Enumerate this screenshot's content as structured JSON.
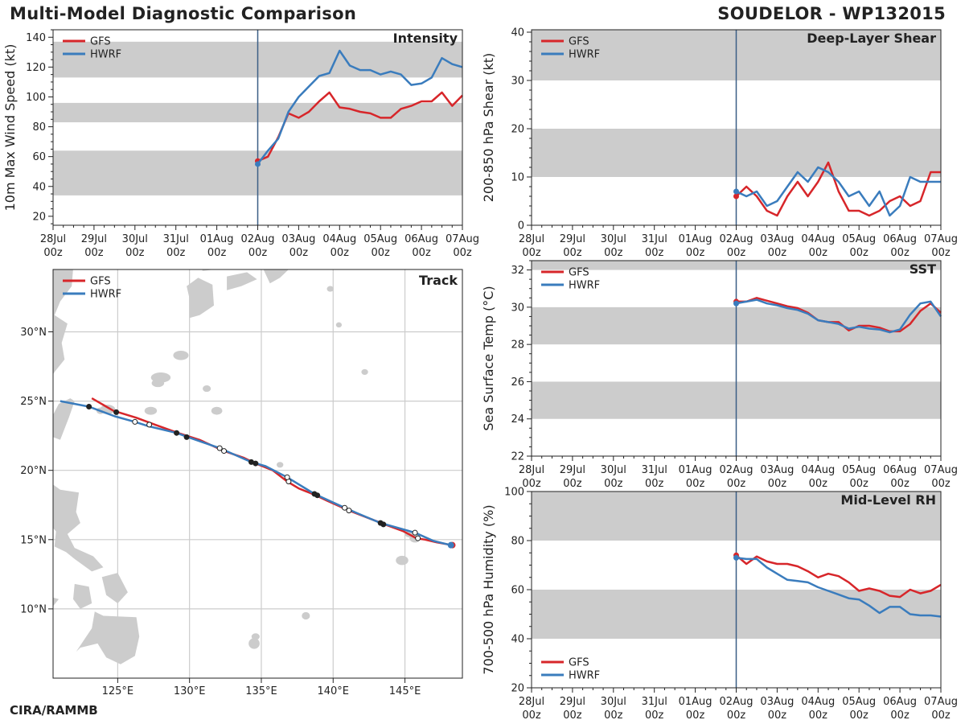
{
  "header": {
    "title": "Multi-Model Diagnostic Comparison",
    "storm": "SOUDELOR - WP132015"
  },
  "footer": {
    "credit": "CIRA/RAMMB"
  },
  "colors": {
    "gfs": "#d7262a",
    "hwrf": "#3a7cbd",
    "band": "#cccccc",
    "land": "#cccccc",
    "grid": "#cccccc",
    "init_line": "#3b5f86"
  },
  "time_axis": {
    "labels": [
      [
        "28Jul",
        "00z"
      ],
      [
        "29Jul",
        "00z"
      ],
      [
        "30Jul",
        "00z"
      ],
      [
        "31Jul",
        "00z"
      ],
      [
        "01Aug",
        "00z"
      ],
      [
        "02Aug",
        "00z"
      ],
      [
        "03Aug",
        "00z"
      ],
      [
        "04Aug",
        "00z"
      ],
      [
        "05Aug",
        "00z"
      ],
      [
        "06Aug",
        "00z"
      ],
      [
        "07Aug",
        "00z"
      ]
    ],
    "range_days": [
      0,
      10
    ],
    "init_day": 5
  },
  "chart_data": [
    {
      "id": "intensity",
      "type": "line",
      "title": "Intensity",
      "ylabel": "10m Max Wind Speed (kt)",
      "ylim": [
        14,
        145
      ],
      "yticks": [
        20,
        40,
        60,
        80,
        100,
        120,
        140
      ],
      "minor_step": 5,
      "bands": [
        [
          34,
          64
        ],
        [
          83,
          96
        ],
        [
          113,
          137
        ]
      ],
      "legend": "top-left",
      "series": [
        {
          "name": "GFS",
          "x": [
            5,
            5.25,
            5.5,
            5.75,
            6,
            6.25,
            6.5,
            6.75,
            7,
            7.25,
            7.5,
            7.75,
            8,
            8.25,
            8.5,
            8.75,
            9,
            9.25,
            9.5,
            9.75,
            10
          ],
          "y": [
            57,
            60,
            73,
            89,
            86,
            90,
            97,
            103,
            93,
            92,
            90,
            89,
            86,
            86,
            92,
            94,
            97,
            97,
            103,
            94,
            101
          ]
        },
        {
          "name": "HWRF",
          "x": [
            5,
            5.25,
            5.5,
            5.75,
            6,
            6.25,
            6.5,
            6.75,
            7,
            7.25,
            7.5,
            7.75,
            8,
            8.25,
            8.5,
            8.75,
            9,
            9.25,
            9.5,
            9.75,
            10
          ],
          "y": [
            55,
            64,
            72,
            90,
            100,
            107,
            114,
            116,
            131,
            121,
            118,
            118,
            115,
            117,
            115,
            108,
            109,
            113,
            126,
            122,
            120
          ]
        }
      ]
    },
    {
      "id": "shear",
      "type": "line",
      "title": "Deep-Layer Shear",
      "ylabel": "200-850 hPa Shear (kt)",
      "ylim": [
        0,
        40.5
      ],
      "yticks": [
        0,
        10,
        20,
        30,
        40
      ],
      "minor_step": 2,
      "bands": [
        [
          10,
          20
        ],
        [
          30,
          40.5
        ]
      ],
      "legend": "top-left",
      "series": [
        {
          "name": "GFS",
          "x": [
            5,
            5.25,
            5.5,
            5.75,
            6,
            6.25,
            6.5,
            6.75,
            7,
            7.25,
            7.5,
            7.75,
            8,
            8.25,
            8.5,
            8.75,
            9,
            9.25,
            9.5,
            9.75,
            10
          ],
          "y": [
            6,
            8,
            6,
            3,
            2,
            6,
            9,
            6,
            9,
            13,
            7,
            3,
            3,
            2,
            3,
            5,
            6,
            4,
            5,
            11,
            11
          ]
        },
        {
          "name": "HWRF",
          "x": [
            5,
            5.25,
            5.5,
            5.75,
            6,
            6.25,
            6.5,
            6.75,
            7,
            7.25,
            7.5,
            7.75,
            8,
            8.25,
            8.5,
            8.75,
            9,
            9.25,
            9.5,
            9.75,
            10
          ],
          "y": [
            7,
            6,
            7,
            4,
            5,
            8,
            11,
            9,
            12,
            11,
            9,
            6,
            7,
            4,
            7,
            2,
            4,
            10,
            9,
            9,
            9
          ]
        }
      ]
    },
    {
      "id": "sst",
      "type": "line",
      "title": "SST",
      "ylabel": "Sea Surface Temp (°C)",
      "ylim": [
        22,
        32.5
      ],
      "yticks": [
        22,
        24,
        26,
        28,
        30,
        32
      ],
      "minor_step": 0.5,
      "bands": [
        [
          24,
          26
        ],
        [
          28,
          30
        ],
        [
          32,
          32.5
        ]
      ],
      "legend": "top-left",
      "series": [
        {
          "name": "GFS",
          "x": [
            5,
            5.25,
            5.5,
            5.75,
            6,
            6.25,
            6.5,
            6.75,
            7,
            7.25,
            7.5,
            7.75,
            8,
            8.25,
            8.5,
            8.75,
            9,
            9.25,
            9.5,
            9.75,
            10
          ],
          "y": [
            30.3,
            30.3,
            30.5,
            30.35,
            30.2,
            30.05,
            29.95,
            29.7,
            29.3,
            29.2,
            29.2,
            28.75,
            29.0,
            29.0,
            28.9,
            28.7,
            28.7,
            29.1,
            29.8,
            30.2,
            29.7
          ]
        },
        {
          "name": "HWRF",
          "x": [
            5,
            5.25,
            5.5,
            5.75,
            6,
            6.25,
            6.5,
            6.75,
            7,
            7.25,
            7.5,
            7.75,
            8,
            8.25,
            8.5,
            8.75,
            9,
            9.25,
            9.5,
            9.75,
            10
          ],
          "y": [
            30.2,
            30.3,
            30.4,
            30.2,
            30.1,
            29.95,
            29.85,
            29.65,
            29.3,
            29.2,
            29.1,
            28.85,
            28.95,
            28.85,
            28.8,
            28.65,
            28.8,
            29.6,
            30.2,
            30.3,
            29.5
          ]
        }
      ]
    },
    {
      "id": "rh",
      "type": "line",
      "title": "Mid-Level RH",
      "ylabel": "700-500 hPa Humidity (%)",
      "ylim": [
        20,
        100
      ],
      "yticks": [
        20,
        40,
        60,
        80,
        100
      ],
      "minor_step": 5,
      "bands": [
        [
          40,
          60
        ],
        [
          80,
          100
        ]
      ],
      "legend": "bottom-left",
      "series": [
        {
          "name": "GFS",
          "x": [
            5,
            5.25,
            5.5,
            5.75,
            6,
            6.25,
            6.5,
            6.75,
            7,
            7.25,
            7.5,
            7.75,
            8,
            8.25,
            8.5,
            8.75,
            9,
            9.25,
            9.5,
            9.75,
            10
          ],
          "y": [
            74,
            70.5,
            73.5,
            71.5,
            70.5,
            70.5,
            69.5,
            67.5,
            65,
            66.5,
            65.5,
            63,
            59.5,
            60.5,
            59.5,
            57.5,
            57,
            60,
            58.5,
            59.5,
            62
          ]
        },
        {
          "name": "HWRF",
          "x": [
            5,
            5.25,
            5.5,
            5.75,
            6,
            6.25,
            6.5,
            6.75,
            7,
            7.25,
            7.5,
            7.75,
            8,
            8.25,
            8.5,
            8.75,
            9,
            9.25,
            9.5,
            9.75,
            10
          ],
          "y": [
            73,
            72.5,
            72.5,
            69,
            66.5,
            64,
            63.5,
            63,
            61,
            59.5,
            58,
            56.5,
            56,
            53.5,
            50.5,
            53,
            53,
            50,
            49.5,
            49.5,
            49
          ]
        }
      ]
    },
    {
      "id": "track",
      "type": "scatter",
      "title": "Track",
      "xlim_lon": [
        120.5,
        149
      ],
      "ylim_lat": [
        5,
        34.5
      ],
      "lon_ticks": [
        125,
        130,
        135,
        140,
        145
      ],
      "lon_labels": [
        "125°E",
        "130°E",
        "135°E",
        "140°E",
        "145°E"
      ],
      "lat_ticks": [
        10,
        15,
        20,
        25,
        30
      ],
      "lat_labels": [
        "10°N",
        "15°N",
        "20°N",
        "25°N",
        "30°N"
      ],
      "legend": "top-left",
      "series": [
        {
          "name": "GFS",
          "lon": [
            148.3,
            147.2,
            146.4,
            145.8,
            144.9,
            143.6,
            141.1,
            139.6,
            138.8,
            137.6,
            136.8,
            135.8,
            134.6,
            133.8,
            132.4,
            130.7,
            129.2,
            127.6,
            126.3,
            124.7,
            123.2
          ],
          "lat": [
            14.6,
            14.8,
            15.0,
            15.1,
            15.6,
            16.1,
            17.1,
            17.8,
            18.2,
            18.7,
            19.2,
            20.0,
            20.5,
            20.9,
            21.4,
            22.2,
            22.7,
            23.3,
            23.8,
            24.3,
            25.2
          ],
          "markers": [
            {
              "lon": 145.9,
              "lat": 15.1,
              "filled": false
            },
            {
              "lon": 143.5,
              "lat": 16.1,
              "filled": true
            },
            {
              "lon": 141.1,
              "lat": 17.1,
              "filled": false
            },
            {
              "lon": 138.9,
              "lat": 18.2,
              "filled": true
            },
            {
              "lon": 136.9,
              "lat": 19.2,
              "filled": false
            },
            {
              "lon": 134.6,
              "lat": 20.5,
              "filled": true
            },
            {
              "lon": 132.4,
              "lat": 21.4,
              "filled": false
            },
            {
              "lon": 129.8,
              "lat": 22.4,
              "filled": true
            },
            {
              "lon": 127.2,
              "lat": 23.3,
              "filled": false
            },
            {
              "lon": 124.9,
              "lat": 24.2,
              "filled": true
            }
          ]
        },
        {
          "name": "HWRF",
          "lon": [
            148.2,
            147.0,
            145.7,
            143.3,
            141.7,
            140.8,
            138.7,
            136.8,
            135.3,
            134.3,
            132.1,
            129.9,
            129.1,
            127.1,
            126.2,
            124.8,
            123.0,
            121.0
          ],
          "lat": [
            14.6,
            14.9,
            15.5,
            16.2,
            16.9,
            17.3,
            18.3,
            19.5,
            20.3,
            20.6,
            21.6,
            22.4,
            22.7,
            23.2,
            23.5,
            23.9,
            24.6,
            25.0
          ],
          "markers": [
            {
              "lon": 145.7,
              "lat": 15.5,
              "filled": false
            },
            {
              "lon": 143.3,
              "lat": 16.2,
              "filled": true
            },
            {
              "lon": 140.8,
              "lat": 17.3,
              "filled": false
            },
            {
              "lon": 138.7,
              "lat": 18.3,
              "filled": true
            },
            {
              "lon": 136.8,
              "lat": 19.5,
              "filled": false
            },
            {
              "lon": 134.3,
              "lat": 20.6,
              "filled": true
            },
            {
              "lon": 132.1,
              "lat": 21.6,
              "filled": false
            },
            {
              "lon": 129.1,
              "lat": 22.7,
              "filled": true
            },
            {
              "lon": 126.2,
              "lat": 23.5,
              "filled": false
            },
            {
              "lon": 123.0,
              "lat": 24.6,
              "filled": true
            }
          ]
        }
      ]
    }
  ]
}
